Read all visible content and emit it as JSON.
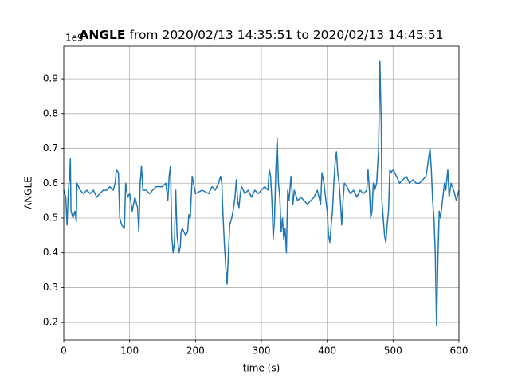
{
  "chart_data": {
    "type": "line",
    "title_bold": "ANGLE",
    "title": "from 2020/02/13 14:35:51 to 2020/02/13 14:45:51",
    "xlabel": "time (s)",
    "ylabel": "ANGLE",
    "offset_label": "1e9",
    "xlim": [
      0,
      600
    ],
    "xticks": [
      0,
      100,
      200,
      300,
      400,
      500,
      600
    ],
    "ylim": [
      0.15,
      0.994
    ],
    "yticks": [
      0.2,
      0.3,
      0.4,
      0.5,
      0.6,
      0.7,
      0.8,
      0.9
    ],
    "grid": true,
    "series": [
      {
        "name": "ANGLE",
        "color": "#1f77b4",
        "x": [
          0,
          3,
          5,
          7,
          9,
          10,
          11,
          14,
          17,
          19,
          20,
          25,
          30,
          35,
          40,
          45,
          50,
          55,
          60,
          65,
          70,
          75,
          78,
          80,
          83,
          85,
          88,
          92,
          94,
          97,
          100,
          104,
          108,
          112,
          114,
          116,
          118,
          120,
          125,
          130,
          140,
          150,
          155,
          158,
          160,
          162,
          164,
          166,
          168,
          170,
          172,
          175,
          177,
          178,
          180,
          185,
          188,
          190,
          192,
          195,
          197,
          200,
          210,
          220,
          225,
          230,
          235,
          238,
          240,
          242,
          244,
          246,
          248,
          250,
          252,
          255,
          257,
          260,
          262,
          264,
          266,
          268,
          270,
          275,
          280,
          285,
          290,
          295,
          300,
          305,
          310,
          312,
          314,
          316,
          318,
          320,
          322,
          324,
          326,
          328,
          330,
          332,
          334,
          336,
          338,
          340,
          342,
          345,
          348,
          350,
          355,
          360,
          365,
          370,
          375,
          380,
          385,
          390,
          392,
          395,
          398,
          400,
          402,
          404,
          406,
          408,
          410,
          412,
          414,
          416,
          418,
          420,
          422,
          424,
          426,
          430,
          435,
          440,
          445,
          450,
          455,
          460,
          462,
          464,
          466,
          468,
          470,
          472,
          475,
          478,
          480,
          481,
          482,
          483,
          485,
          487,
          489,
          491,
          493,
          495,
          497,
          500,
          505,
          510,
          515,
          520,
          525,
          530,
          535,
          540,
          550,
          553,
          556,
          558,
          560,
          562,
          564,
          566,
          568,
          570,
          572,
          575,
          578,
          580,
          583,
          585,
          588,
          592,
          596,
          600
        ],
        "values": [
          0.58,
          0.56,
          0.48,
          0.58,
          0.62,
          0.67,
          0.52,
          0.5,
          0.52,
          0.49,
          0.6,
          0.58,
          0.57,
          0.58,
          0.57,
          0.58,
          0.56,
          0.57,
          0.58,
          0.58,
          0.59,
          0.58,
          0.6,
          0.64,
          0.63,
          0.5,
          0.48,
          0.47,
          0.6,
          0.56,
          0.57,
          0.52,
          0.56,
          0.53,
          0.46,
          0.6,
          0.65,
          0.58,
          0.58,
          0.57,
          0.59,
          0.59,
          0.6,
          0.55,
          0.62,
          0.65,
          0.45,
          0.4,
          0.43,
          0.58,
          0.45,
          0.4,
          0.42,
          0.46,
          0.47,
          0.45,
          0.46,
          0.51,
          0.5,
          0.62,
          0.6,
          0.57,
          0.58,
          0.57,
          0.59,
          0.58,
          0.6,
          0.62,
          0.6,
          0.5,
          0.42,
          0.36,
          0.31,
          0.4,
          0.48,
          0.5,
          0.52,
          0.56,
          0.61,
          0.55,
          0.53,
          0.57,
          0.59,
          0.57,
          0.58,
          0.56,
          0.58,
          0.57,
          0.58,
          0.59,
          0.58,
          0.64,
          0.62,
          0.55,
          0.44,
          0.5,
          0.64,
          0.73,
          0.6,
          0.56,
          0.46,
          0.5,
          0.44,
          0.47,
          0.4,
          0.58,
          0.55,
          0.62,
          0.54,
          0.58,
          0.55,
          0.56,
          0.55,
          0.54,
          0.55,
          0.56,
          0.58,
          0.54,
          0.63,
          0.6,
          0.55,
          0.52,
          0.45,
          0.43,
          0.48,
          0.52,
          0.6,
          0.66,
          0.69,
          0.63,
          0.6,
          0.55,
          0.48,
          0.55,
          0.6,
          0.59,
          0.57,
          0.58,
          0.56,
          0.58,
          0.57,
          0.58,
          0.64,
          0.58,
          0.5,
          0.52,
          0.6,
          0.58,
          0.6,
          0.7,
          0.95,
          0.85,
          0.78,
          0.55,
          0.5,
          0.45,
          0.43,
          0.48,
          0.52,
          0.64,
          0.63,
          0.64,
          0.62,
          0.6,
          0.61,
          0.62,
          0.6,
          0.61,
          0.6,
          0.6,
          0.62,
          0.66,
          0.7,
          0.64,
          0.55,
          0.5,
          0.4,
          0.19,
          0.38,
          0.52,
          0.5,
          0.55,
          0.6,
          0.58,
          0.64,
          0.56,
          0.6,
          0.58,
          0.55,
          0.58
        ]
      }
    ]
  }
}
